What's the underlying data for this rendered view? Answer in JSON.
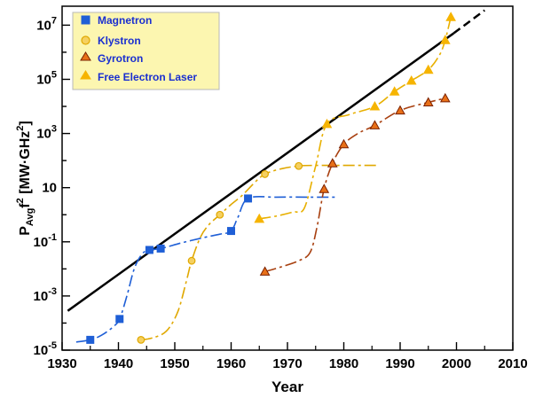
{
  "chart_data": {
    "type": "scatter",
    "xlabel": "Year",
    "ylabel": {
      "main": "P",
      "sub": "Avg",
      "mid": "f",
      "sup": "2",
      "unit": " [MW·GHz",
      "unit_sup": "2",
      "unit_end": "]"
    },
    "xlim": [
      1930,
      2010
    ],
    "ylim_log10": [
      -5,
      7.7
    ],
    "y_scale": "log",
    "grid": false,
    "legend_position": "top-left",
    "x_ticks": [
      {
        "v": 1930,
        "label": "1930"
      },
      {
        "v": 1940,
        "label": "1940"
      },
      {
        "v": 1950,
        "label": "1950"
      },
      {
        "v": 1960,
        "label": "1960"
      },
      {
        "v": 1970,
        "label": "1970"
      },
      {
        "v": 1980,
        "label": "1980"
      },
      {
        "v": 1990,
        "label": "1990"
      },
      {
        "v": 2000,
        "label": "2000"
      },
      {
        "v": 2010,
        "label": "2010"
      }
    ],
    "y_ticks": [
      {
        "e": -5,
        "base": "10",
        "sup": "-5"
      },
      {
        "e": -3,
        "base": "10",
        "sup": "-3"
      },
      {
        "e": -1,
        "base": "10",
        "sup": "-1"
      },
      {
        "e": 1,
        "base": "10",
        "sup": ""
      },
      {
        "e": 3,
        "base": "10",
        "sup": "3"
      },
      {
        "e": 5,
        "base": "10",
        "sup": "5"
      },
      {
        "e": 7,
        "base": "10",
        "sup": "7"
      }
    ],
    "trend_line": {
      "x": [
        1931,
        1999.5
      ],
      "log10y": [
        -3.55,
        6.7
      ],
      "solid_until": 1999.5,
      "dashed_to": [
        2005,
        7.55
      ]
    },
    "series": [
      {
        "name": "Magnetron",
        "marker": "square",
        "fill": "#1f5fd6",
        "stroke": "#1f5fd6",
        "line": "#1f5fd6",
        "points": [
          [
            1935,
            -4.62
          ],
          [
            1940.2,
            -3.85
          ],
          [
            1945.5,
            -1.3
          ],
          [
            1947.5,
            -1.25
          ],
          [
            1960,
            -0.6
          ],
          [
            1963,
            0.6
          ]
        ],
        "curve": [
          [
            1932.5,
            -4.7
          ],
          [
            1935,
            -4.62
          ],
          [
            1937,
            -4.45
          ],
          [
            1939,
            -4.15
          ],
          [
            1940.2,
            -3.85
          ],
          [
            1941.5,
            -3.0
          ],
          [
            1942.8,
            -2.0
          ],
          [
            1944.2,
            -1.45
          ],
          [
            1945.5,
            -1.3
          ],
          [
            1947.5,
            -1.25
          ],
          [
            1951,
            -1.05
          ],
          [
            1955,
            -0.85
          ],
          [
            1958,
            -0.72
          ],
          [
            1960,
            -0.6
          ],
          [
            1961.2,
            -0.1
          ],
          [
            1963,
            0.6
          ],
          [
            1968,
            0.65
          ],
          [
            1974,
            0.65
          ],
          [
            1979,
            0.65
          ]
        ]
      },
      {
        "name": "Klystron",
        "marker": "circle",
        "fill": "#f5d060",
        "stroke": "#e0a800",
        "line": "#e0a800",
        "points": [
          [
            1944,
            -4.62
          ],
          [
            1953,
            -1.7
          ],
          [
            1958,
            0.0
          ],
          [
            1966,
            1.5
          ],
          [
            1972,
            1.8
          ]
        ],
        "curve": [
          [
            1944,
            -4.62
          ],
          [
            1946,
            -4.55
          ],
          [
            1948.5,
            -4.3
          ],
          [
            1950.5,
            -3.6
          ],
          [
            1952,
            -2.5
          ],
          [
            1953,
            -1.7
          ],
          [
            1954.5,
            -0.85
          ],
          [
            1956,
            -0.38
          ],
          [
            1958,
            0.0
          ],
          [
            1960,
            0.38
          ],
          [
            1962,
            0.72
          ],
          [
            1964,
            1.15
          ],
          [
            1966,
            1.5
          ],
          [
            1969,
            1.7
          ],
          [
            1972,
            1.8
          ],
          [
            1975,
            1.82
          ],
          [
            1986,
            1.82
          ]
        ]
      },
      {
        "name": "Gyrotron",
        "marker": "triangle",
        "fill": "#e87018",
        "stroke": "#7a2000",
        "line": "#a84010",
        "points": [
          [
            1966,
            -2.1
          ],
          [
            1976.5,
            0.95
          ],
          [
            1978,
            1.9
          ],
          [
            1980,
            2.6
          ],
          [
            1985.5,
            3.3
          ],
          [
            1990,
            3.85
          ],
          [
            1995,
            4.15
          ],
          [
            1998,
            4.3
          ]
        ],
        "curve": [
          [
            1966,
            -2.1
          ],
          [
            1969,
            -1.92
          ],
          [
            1972,
            -1.7
          ],
          [
            1974,
            -1.4
          ],
          [
            1975.2,
            -0.5
          ],
          [
            1976.5,
            0.95
          ],
          [
            1978,
            1.9
          ],
          [
            1980,
            2.6
          ],
          [
            1982.5,
            3.0
          ],
          [
            1985.5,
            3.3
          ],
          [
            1990,
            3.85
          ],
          [
            1995,
            4.15
          ],
          [
            1998,
            4.3
          ]
        ]
      },
      {
        "name": "Free Electron Laser",
        "marker": "triangle",
        "fill": "#f6b400",
        "stroke": "#f6b400",
        "line": "#e8b000",
        "points": [
          [
            1965,
            -0.15
          ],
          [
            1977,
            3.35
          ],
          [
            1985.5,
            4.0
          ],
          [
            1989,
            4.55
          ],
          [
            1992,
            4.95
          ],
          [
            1995,
            5.35
          ],
          [
            1998,
            6.45
          ],
          [
            1999,
            7.3
          ]
        ],
        "curve": [
          [
            1965,
            -0.15
          ],
          [
            1968,
            -0.05
          ],
          [
            1971,
            0.1
          ],
          [
            1973,
            0.25
          ],
          [
            1975,
            1.8
          ],
          [
            1977,
            3.35
          ],
          [
            1981,
            3.7
          ],
          [
            1985.5,
            4.0
          ],
          [
            1989,
            4.55
          ],
          [
            1992,
            4.95
          ],
          [
            1995,
            5.35
          ],
          [
            1997,
            5.9
          ],
          [
            1998,
            6.45
          ],
          [
            1999,
            7.3
          ]
        ]
      }
    ]
  }
}
